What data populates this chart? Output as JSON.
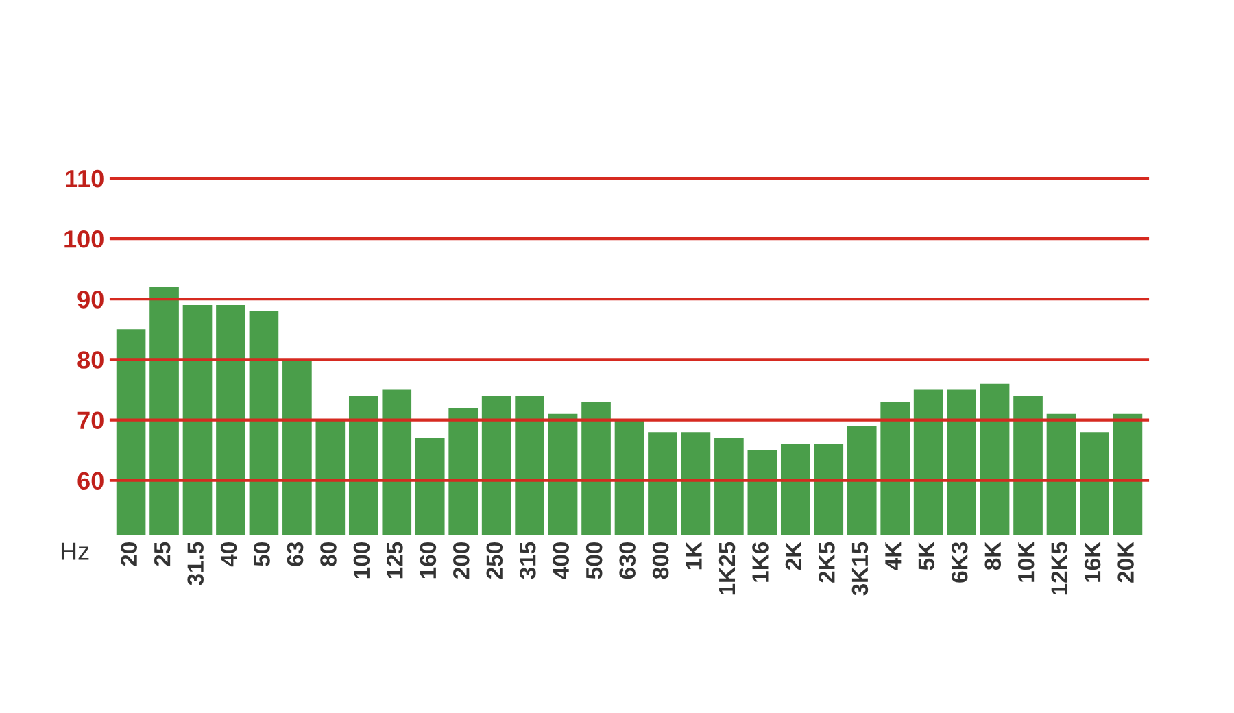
{
  "chart_data": {
    "type": "bar",
    "xlabel": "Hz",
    "categories": [
      "20",
      "25",
      "31.5",
      "40",
      "50",
      "63",
      "80",
      "100",
      "125",
      "160",
      "200",
      "250",
      "315",
      "400",
      "500",
      "630",
      "800",
      "1K",
      "1K25",
      "1K6",
      "2K",
      "2K5",
      "3K15",
      "4K",
      "5K",
      "6K3",
      "8K",
      "10K",
      "12K5",
      "16K",
      "20K"
    ],
    "values": [
      85,
      92,
      89,
      89,
      88,
      80,
      70,
      74,
      75,
      67,
      72,
      74,
      74,
      71,
      73,
      70,
      68,
      68,
      67,
      65,
      66,
      66,
      69,
      73,
      75,
      75,
      76,
      74,
      71,
      68,
      71
    ],
    "color": "#4a9e4a",
    "ylim": [
      51,
      110
    ],
    "yticks": [
      60,
      70,
      80,
      90,
      100,
      110
    ],
    "grid": "y"
  }
}
